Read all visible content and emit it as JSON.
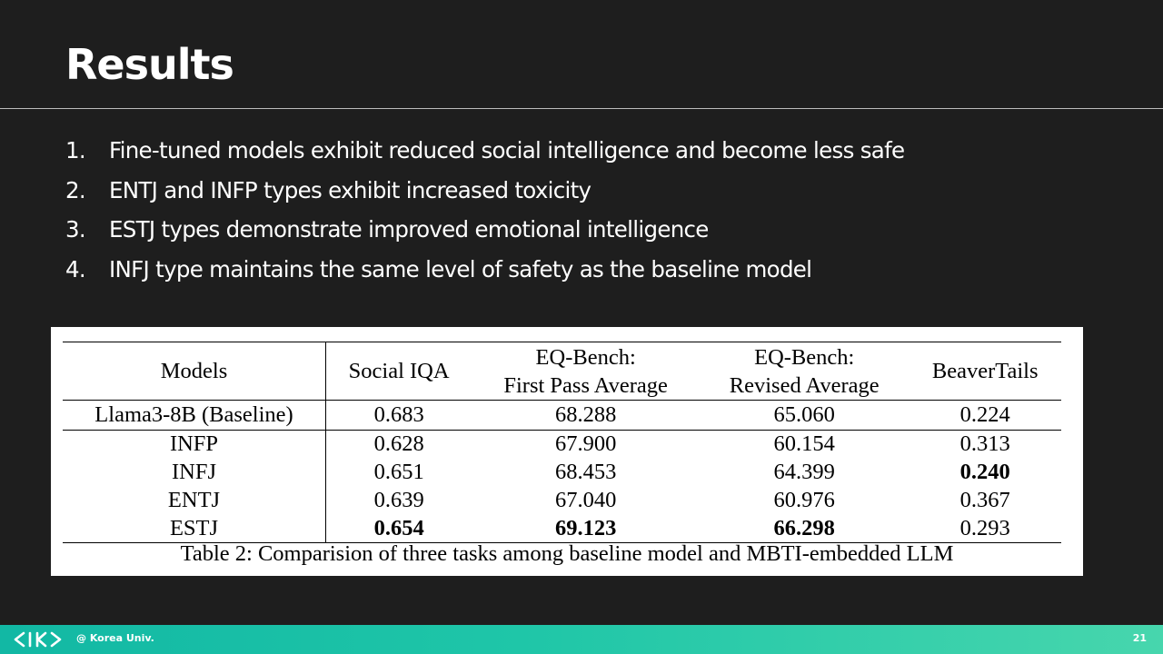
{
  "slide": {
    "title": "Results",
    "points": [
      {
        "num": "1.",
        "text": "Fine-tuned models exhibit reduced social intelligence and become less safe"
      },
      {
        "num": "2.",
        "text": "ENTJ and INFP types exhibit increased toxicity"
      },
      {
        "num": "3.",
        "text": "ESTJ types demonstrate improved emotional intelligence"
      },
      {
        "num": "4.",
        "text": "INFJ type maintains the same level of safety as the baseline model"
      }
    ],
    "page_number": "21"
  },
  "table": {
    "headers": {
      "models": "Models",
      "social_iqa": "Social IQA",
      "eq_first_line1": "EQ-Bench:",
      "eq_first_line2": "First Pass Average",
      "eq_revised_line1": "EQ-Bench:",
      "eq_revised_line2": "Revised Average",
      "beavertails": "BeaverTails"
    },
    "rows": [
      {
        "model": "Llama3-8B (Baseline)",
        "social_iqa": "0.683",
        "eq_first": "68.288",
        "eq_revised": "65.060",
        "beavertails": "0.224"
      },
      {
        "model": "INFP",
        "social_iqa": "0.628",
        "eq_first": "67.900",
        "eq_revised": "60.154",
        "beavertails": "0.313"
      },
      {
        "model": "INFJ",
        "social_iqa": "0.651",
        "eq_first": "68.453",
        "eq_revised": "64.399",
        "beavertails": "0.240"
      },
      {
        "model": "ENTJ",
        "social_iqa": "0.639",
        "eq_first": "67.040",
        "eq_revised": "60.976",
        "beavertails": "0.367"
      },
      {
        "model": "ESTJ",
        "social_iqa": "0.654",
        "eq_first": "69.123",
        "eq_revised": "66.298",
        "beavertails": "0.293"
      }
    ],
    "caption": "Table 2: Comparision of three tasks among baseline model and MBTI-embedded LLM"
  },
  "footer": {
    "logo_icon": "kiks-logo-icon",
    "affiliation": "@ Korea Univ."
  },
  "colors": {
    "background": "#1e1e1e",
    "footer_start": "#12b8a4",
    "footer_end": "#47d6ad"
  }
}
